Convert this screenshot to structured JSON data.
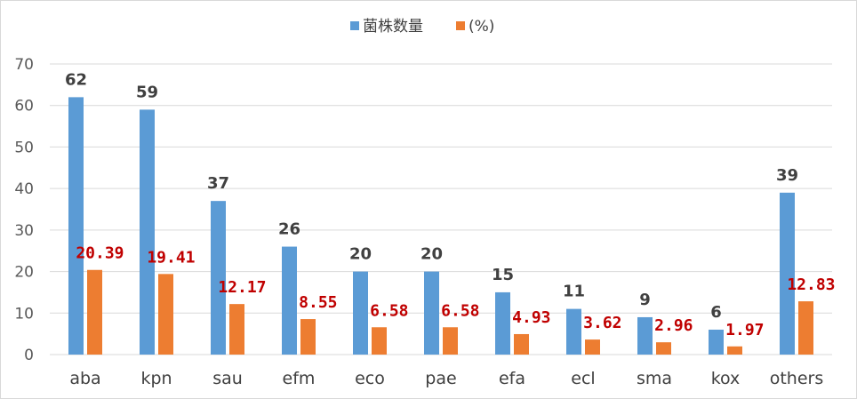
{
  "chart_data": {
    "type": "bar",
    "categories": [
      "aba",
      "kpn",
      "sau",
      "efm",
      "eco",
      "pae",
      "efa",
      "ecl",
      "sma",
      "kox",
      "others"
    ],
    "series": [
      {
        "name": "菌株数量",
        "color": "#5b9bd5",
        "values": [
          62,
          59,
          37,
          26,
          20,
          20,
          15,
          11,
          9,
          6,
          39
        ],
        "labels": [
          "62",
          "59",
          "37",
          "26",
          "20",
          "20",
          "15",
          "11",
          "9",
          "6",
          "39"
        ]
      },
      {
        "name": "(%)",
        "color": "#ed7d31",
        "values": [
          20.39,
          19.41,
          12.17,
          8.55,
          6.58,
          6.58,
          4.93,
          3.62,
          2.96,
          1.97,
          12.83
        ],
        "labels": [
          "20.39",
          "19.41",
          "12.17",
          "8.55",
          "6.58",
          "6.58",
          "4.93",
          "3.62",
          "2.96",
          "1.97",
          "12.83"
        ]
      }
    ],
    "yticks": [
      "0",
      "10",
      "20",
      "30",
      "40",
      "50",
      "60",
      "70"
    ],
    "ylim": [
      0,
      70
    ],
    "grid": true,
    "legend_position": "top-center"
  }
}
